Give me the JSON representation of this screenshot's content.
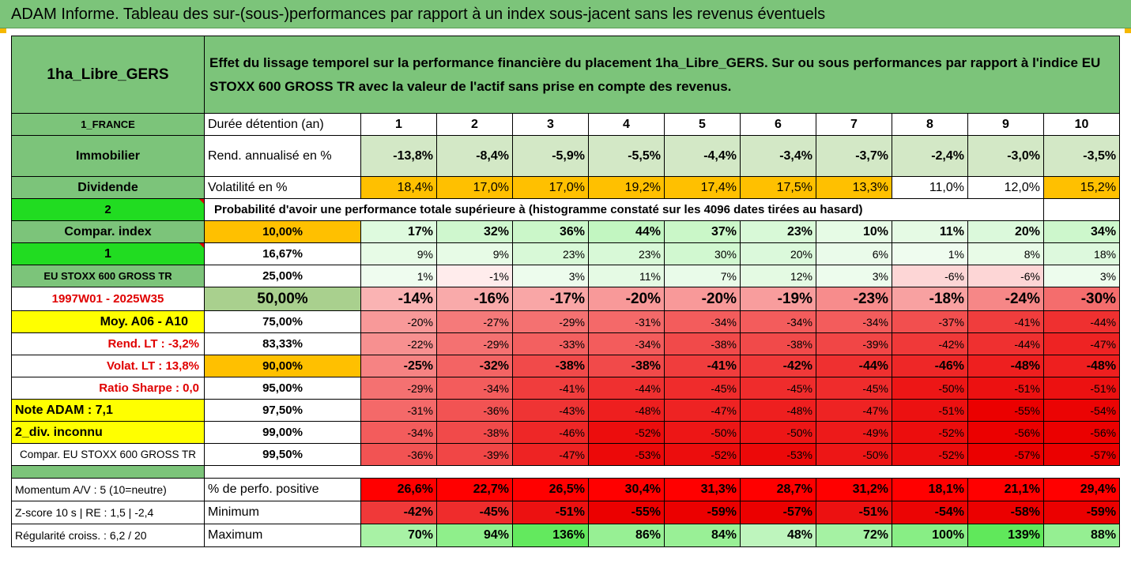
{
  "title": "ADAM Informe. Tableau des sur-(sous-)performances par rapport à un index sous-jacent sans les revenus éventuels",
  "fund_name": "1ha_Libre_GERS",
  "description": "Effet du lissage temporel sur la performance financière du placement 1ha_Libre_GERS. Sur ou sous performances par rapport à l'indice EU STOXX 600 GROSS TR avec la valeur de l'actif sans prise en compte des revenus.",
  "left": {
    "country": "1_FRANCE",
    "asset_class": "Immobilier",
    "income": "Dividende",
    "box_2": "2",
    "compar_index": "Compar. index",
    "box_1": "1",
    "index_name": "EU STOXX 600 GROSS TR",
    "period": "1997W01 - 2025W35",
    "moy": "Moy. A06 - A10",
    "rend_lt": "Rend. LT :   -3,2%",
    "volat_lt": "Volat. LT :   13,8%",
    "sharpe": "Ratio Sharpe :    0,0",
    "note": "Note ADAM : 7,1",
    "div": "2_div. inconnu",
    "compar": "Compar. EU STOXX 600 GROSS TR",
    "momentum": "Momentum A/V : 5 (10=neutre)",
    "zscore": "Z-score 10 s  |  RE : 1,5  | -2,4",
    "regularite": "Régularité croiss. : 6,2 / 20"
  },
  "labels": {
    "duree": "Durée détention (an)",
    "rend": "Rend. annualisé en %",
    "vol": "Volatilité en %",
    "proba": "Probabilité d'avoir une performance totale supérieure à (histogramme constaté sur les 4096 dates tirées au hasard)",
    "perf_pos": "% de perfo. positive",
    "minimum": "Minimum",
    "maximum": "Maximum"
  },
  "years": [
    "1",
    "2",
    "3",
    "4",
    "5",
    "6",
    "7",
    "8",
    "9",
    "10"
  ],
  "rend": [
    "-13,8%",
    "-8,4%",
    "-5,9%",
    "-5,5%",
    "-4,4%",
    "-3,4%",
    "-3,7%",
    "-2,4%",
    "-3,0%",
    "-3,5%"
  ],
  "vol": [
    "18,4%",
    "17,0%",
    "17,0%",
    "19,2%",
    "17,4%",
    "17,5%",
    "13,3%",
    "11,0%",
    "12,0%",
    "15,2%"
  ],
  "quantiles": [
    {
      "q": "10,00%",
      "v": [
        "17%",
        "32%",
        "36%",
        "44%",
        "37%",
        "23%",
        "10%",
        "11%",
        "20%",
        "34%"
      ]
    },
    {
      "q": "16,67%",
      "v": [
        "9%",
        "9%",
        "23%",
        "23%",
        "30%",
        "20%",
        "6%",
        "1%",
        "8%",
        "18%"
      ]
    },
    {
      "q": "25,00%",
      "v": [
        "1%",
        "-1%",
        "3%",
        "11%",
        "7%",
        "12%",
        "3%",
        "-6%",
        "-6%",
        "3%"
      ]
    },
    {
      "q": "50,00%",
      "v": [
        "-14%",
        "-16%",
        "-17%",
        "-20%",
        "-20%",
        "-19%",
        "-23%",
        "-18%",
        "-24%",
        "-30%"
      ]
    },
    {
      "q": "75,00%",
      "v": [
        "-20%",
        "-27%",
        "-29%",
        "-31%",
        "-34%",
        "-34%",
        "-34%",
        "-37%",
        "-41%",
        "-44%"
      ]
    },
    {
      "q": "83,33%",
      "v": [
        "-22%",
        "-29%",
        "-33%",
        "-34%",
        "-38%",
        "-38%",
        "-39%",
        "-42%",
        "-44%",
        "-47%"
      ]
    },
    {
      "q": "90,00%",
      "v": [
        "-25%",
        "-32%",
        "-38%",
        "-38%",
        "-41%",
        "-42%",
        "-44%",
        "-46%",
        "-48%",
        "-48%"
      ]
    },
    {
      "q": "95,00%",
      "v": [
        "-29%",
        "-34%",
        "-41%",
        "-44%",
        "-45%",
        "-45%",
        "-45%",
        "-50%",
        "-51%",
        "-51%"
      ]
    },
    {
      "q": "97,50%",
      "v": [
        "-31%",
        "-36%",
        "-43%",
        "-48%",
        "-47%",
        "-48%",
        "-47%",
        "-51%",
        "-55%",
        "-54%"
      ]
    },
    {
      "q": "99,00%",
      "v": [
        "-34%",
        "-38%",
        "-46%",
        "-52%",
        "-50%",
        "-50%",
        "-49%",
        "-52%",
        "-56%",
        "-56%"
      ]
    },
    {
      "q": "99,50%",
      "v": [
        "-36%",
        "-39%",
        "-47%",
        "-53%",
        "-52%",
        "-53%",
        "-50%",
        "-52%",
        "-57%",
        "-57%"
      ]
    }
  ],
  "perf_pos": [
    "26,6%",
    "22,7%",
    "26,5%",
    "30,4%",
    "31,3%",
    "28,7%",
    "31,2%",
    "18,1%",
    "21,1%",
    "29,4%"
  ],
  "minimum": [
    "-42%",
    "-45%",
    "-51%",
    "-55%",
    "-59%",
    "-57%",
    "-51%",
    "-54%",
    "-58%",
    "-59%"
  ],
  "maximum": [
    "70%",
    "94%",
    "136%",
    "86%",
    "84%",
    "48%",
    "72%",
    "100%",
    "139%",
    "88%"
  ],
  "colors": {
    "header_green": "#7cc47a",
    "bright_green": "#21dc21",
    "yellow": "#ffff00",
    "orange": "#ffc000",
    "red_text": "#e00000"
  }
}
